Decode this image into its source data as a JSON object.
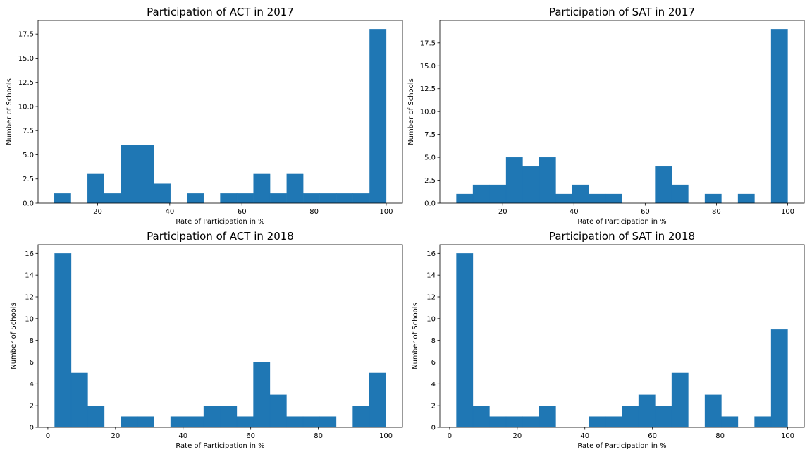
{
  "chart_data": [
    {
      "type": "bar",
      "title": "Participation of ACT in 2017",
      "xlabel": "Rate of Participation in %",
      "ylabel": "Number of Schools",
      "xlim": [
        3.5,
        104.5
      ],
      "ylim": [
        0,
        18.9
      ],
      "xticks": [
        20,
        40,
        60,
        80,
        100
      ],
      "xtick_labels": [
        "20",
        "40",
        "60",
        "80",
        "100"
      ],
      "yticks": [
        0,
        2.5,
        5,
        7.5,
        10,
        12.5,
        15,
        17.5
      ],
      "ytick_labels": [
        "0.0",
        "2.5",
        "5.0",
        "7.5",
        "10.0",
        "12.5",
        "15.0",
        "17.5"
      ],
      "bin_edges": [
        8,
        12.6,
        17.2,
        21.8,
        26.4,
        31,
        35.6,
        40.2,
        44.8,
        49.4,
        54,
        58.6,
        63.2,
        67.8,
        72.4,
        77,
        81.6,
        86.2,
        90.8,
        95.4,
        100
      ],
      "values": [
        1,
        0,
        3,
        1,
        6,
        6,
        2,
        0,
        1,
        0,
        1,
        1,
        3,
        1,
        3,
        1,
        1,
        1,
        1,
        18
      ],
      "color": "#1f77b4"
    },
    {
      "type": "bar",
      "title": "Participation of SAT in 2017",
      "xlabel": "Rate of Participation in %",
      "ylabel": "Number of Schools",
      "xlim": [
        2.35,
        104.65
      ],
      "ylim": [
        0,
        19.95
      ],
      "xticks": [
        20,
        40,
        60,
        80,
        100
      ],
      "xtick_labels": [
        "20",
        "40",
        "60",
        "80",
        "100"
      ],
      "yticks": [
        0,
        2.5,
        5,
        7.5,
        10,
        12.5,
        15,
        17.5
      ],
      "ytick_labels": [
        "0.0",
        "2.5",
        "5.0",
        "7.5",
        "10.0",
        "12.5",
        "15.0",
        "17.5"
      ],
      "bin_edges": [
        7,
        11.65,
        16.3,
        20.95,
        25.6,
        30.25,
        34.9,
        39.55,
        44.2,
        48.85,
        53.5,
        58.15,
        62.8,
        67.45,
        72.1,
        76.75,
        81.4,
        86.05,
        90.7,
        95.35,
        100
      ],
      "values": [
        1,
        2,
        2,
        5,
        4,
        5,
        1,
        2,
        1,
        1,
        0,
        0,
        4,
        2,
        0,
        1,
        0,
        1,
        0,
        19
      ],
      "color": "#1f77b4"
    },
    {
      "type": "bar",
      "title": "Participation of ACT in 2018",
      "xlabel": "Rate of Participation in %",
      "ylabel": "Number of Schools",
      "xlim": [
        -2.9,
        104.9
      ],
      "ylim": [
        0,
        16.8
      ],
      "xticks": [
        0,
        20,
        40,
        60,
        80,
        100
      ],
      "xtick_labels": [
        "0",
        "20",
        "40",
        "60",
        "80",
        "100"
      ],
      "yticks": [
        0,
        2,
        4,
        6,
        8,
        10,
        12,
        14,
        16
      ],
      "ytick_labels": [
        "0",
        "2",
        "4",
        "6",
        "8",
        "10",
        "12",
        "14",
        "16"
      ],
      "bin_edges": [
        2,
        6.9,
        11.8,
        16.7,
        21.6,
        26.5,
        31.4,
        36.3,
        41.2,
        46.1,
        51,
        55.9,
        60.8,
        65.7,
        70.6,
        75.5,
        80.4,
        85.3,
        90.2,
        95.1,
        100
      ],
      "values": [
        16,
        5,
        2,
        0,
        1,
        1,
        0,
        1,
        1,
        2,
        2,
        1,
        6,
        3,
        1,
        1,
        1,
        0,
        2,
        5
      ],
      "color": "#1f77b4"
    },
    {
      "type": "bar",
      "title": "Participation of SAT in 2018",
      "xlabel": "Rate of Participation in %",
      "ylabel": "Number of Schools",
      "xlim": [
        -2.9,
        104.9
      ],
      "ylim": [
        0,
        16.8
      ],
      "xticks": [
        0,
        20,
        40,
        60,
        80,
        100
      ],
      "xtick_labels": [
        "0",
        "20",
        "40",
        "60",
        "80",
        "100"
      ],
      "yticks": [
        0,
        2,
        4,
        6,
        8,
        10,
        12,
        14,
        16
      ],
      "ytick_labels": [
        "0",
        "2",
        "4",
        "6",
        "8",
        "10",
        "12",
        "14",
        "16"
      ],
      "bin_edges": [
        2,
        6.9,
        11.8,
        16.7,
        21.6,
        26.5,
        31.4,
        36.3,
        41.2,
        46.1,
        51,
        55.9,
        60.8,
        65.7,
        70.6,
        75.5,
        80.4,
        85.3,
        90.2,
        95.1,
        100
      ],
      "values": [
        16,
        2,
        1,
        1,
        1,
        2,
        0,
        0,
        1,
        1,
        2,
        3,
        2,
        5,
        0,
        3,
        1,
        0,
        1,
        9
      ],
      "color": "#1f77b4"
    }
  ]
}
